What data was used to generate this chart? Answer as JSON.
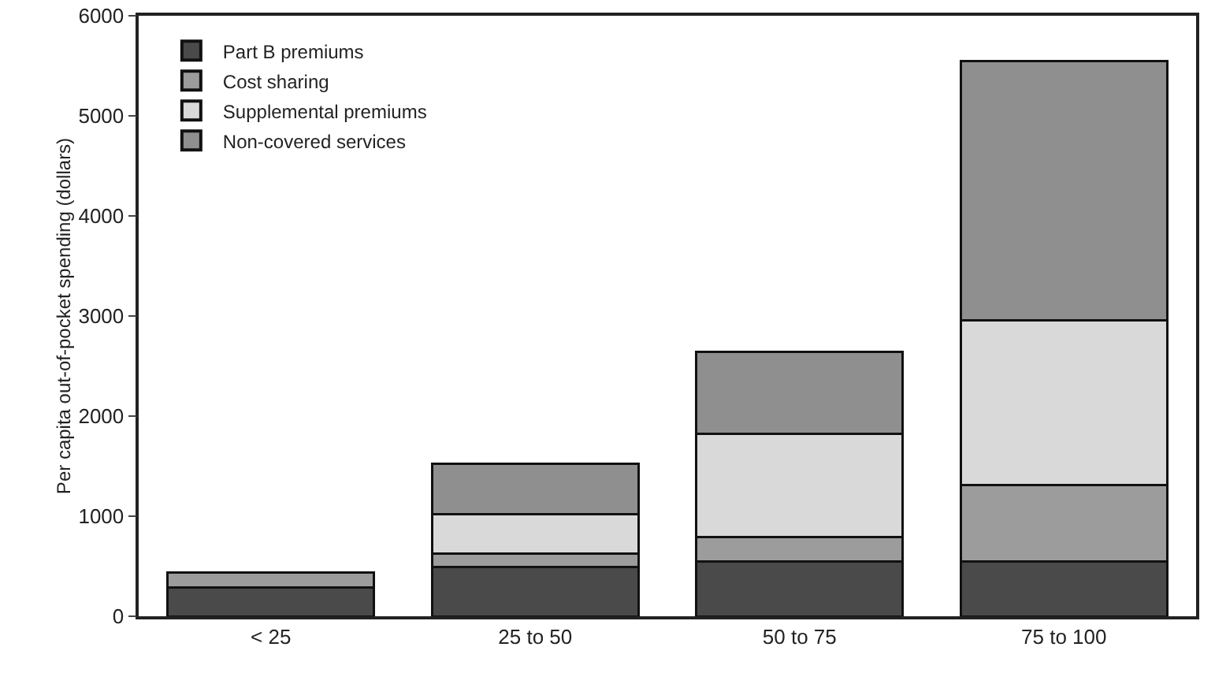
{
  "chart_data": {
    "type": "bar",
    "stacked": true,
    "ylabel": "Per capita out-of-pocket spending (dollars)",
    "categories": [
      "< 25",
      "25 to 50",
      "50 to 75",
      "75 to 100"
    ],
    "series": [
      {
        "name": "Part B premiums",
        "color": "#4a4a4a",
        "values": [
          290,
          490,
          550,
          550
        ]
      },
      {
        "name": "Cost sharing",
        "color": "#9c9c9c",
        "values": [
          150,
          140,
          240,
          760
        ]
      },
      {
        "name": "Supplemental premiums",
        "color": "#d9d9d9",
        "values": [
          null,
          390,
          1030,
          1650
        ]
      },
      {
        "name": "Non-covered services",
        "color": "#8f8f8f",
        "values": [
          null,
          500,
          820,
          2590
        ]
      }
    ],
    "ylim": [
      0,
      6000
    ],
    "yticks": [
      0,
      1000,
      2000,
      3000,
      4000,
      5000,
      6000
    ],
    "grid": false,
    "legend": "top left"
  }
}
